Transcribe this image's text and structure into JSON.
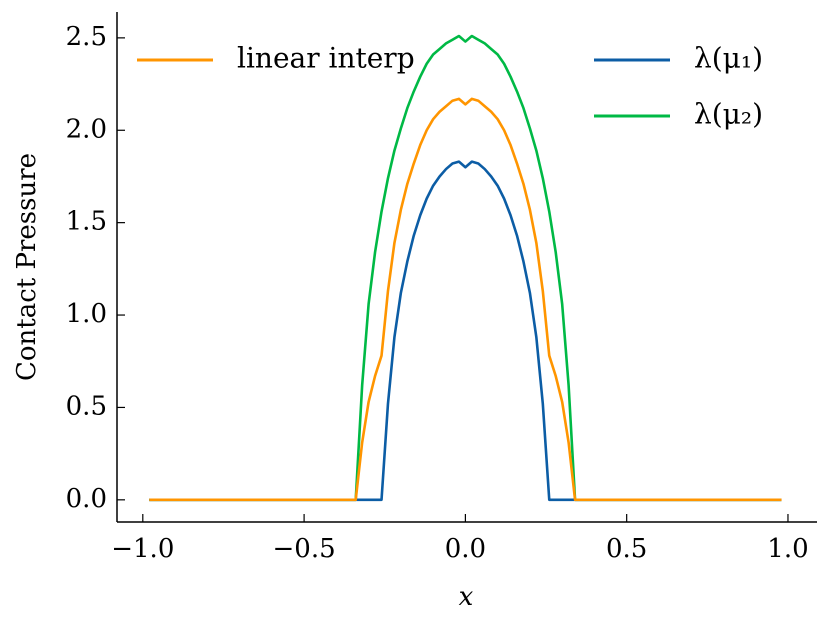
{
  "chart_data": {
    "type": "line",
    "xlabel": "x",
    "ylabel": "Contact Pressure",
    "x": [
      -0.98,
      -0.34,
      -0.32,
      -0.3,
      -0.28,
      -0.26,
      -0.24,
      -0.22,
      -0.2,
      -0.18,
      -0.16,
      -0.14,
      -0.12,
      -0.1,
      -0.08,
      -0.06,
      -0.04,
      -0.02,
      0.0,
      0.02,
      0.04,
      0.06,
      0.08,
      0.1,
      0.12,
      0.14,
      0.16,
      0.18,
      0.2,
      0.22,
      0.24,
      0.26,
      0.28,
      0.3,
      0.32,
      0.34,
      0.98
    ],
    "series": [
      {
        "name": "linear interp",
        "color": "#ff9500",
        "values": [
          0,
          0,
          0.31,
          0.53,
          0.67,
          0.78,
          1.13,
          1.39,
          1.57,
          1.71,
          1.82,
          1.92,
          2.0,
          2.06,
          2.1,
          2.13,
          2.16,
          2.17,
          2.14,
          2.17,
          2.16,
          2.13,
          2.1,
          2.06,
          2.0,
          1.92,
          1.82,
          1.71,
          1.57,
          1.39,
          1.13,
          0.78,
          0.67,
          0.53,
          0.31,
          0,
          0
        ]
      },
      {
        "name": "λ(μ₁)",
        "color": "#0c5da5",
        "values": [
          0,
          0,
          0,
          0,
          0,
          0,
          0.52,
          0.88,
          1.12,
          1.29,
          1.43,
          1.54,
          1.63,
          1.7,
          1.75,
          1.79,
          1.82,
          1.83,
          1.8,
          1.83,
          1.82,
          1.79,
          1.75,
          1.7,
          1.63,
          1.54,
          1.43,
          1.29,
          1.12,
          0.88,
          0.52,
          0,
          0,
          0,
          0,
          0,
          0
        ]
      },
      {
        "name": "λ(μ₂)",
        "color": "#00b945",
        "values": [
          0,
          0,
          0.62,
          1.06,
          1.34,
          1.56,
          1.74,
          1.89,
          2.01,
          2.12,
          2.21,
          2.29,
          2.36,
          2.41,
          2.44,
          2.47,
          2.49,
          2.51,
          2.48,
          2.51,
          2.49,
          2.47,
          2.44,
          2.41,
          2.36,
          2.29,
          2.21,
          2.12,
          2.01,
          1.89,
          1.74,
          1.56,
          1.34,
          1.06,
          0.62,
          0,
          0
        ]
      }
    ],
    "xlim": [
      -1.08,
      1.09
    ],
    "xticks": [
      {
        "value": -1,
        "label": "−1.0"
      },
      {
        "value": -0.5,
        "label": "−0.5"
      },
      {
        "value": 0,
        "label": "0.0"
      },
      {
        "value": 0.5,
        "label": "0.5"
      },
      {
        "value": 1,
        "label": "1.0"
      }
    ],
    "ylim": [
      -0.12,
      2.64
    ],
    "yticks": [
      {
        "value": 0,
        "label": "0.0"
      },
      {
        "value": 0.5,
        "label": "0.5"
      },
      {
        "value": 1,
        "label": "1.0"
      },
      {
        "value": 1.5,
        "label": "1.5"
      },
      {
        "value": 2,
        "label": "2.0"
      },
      {
        "value": 2.5,
        "label": "2.5"
      }
    ],
    "grid": false
  }
}
